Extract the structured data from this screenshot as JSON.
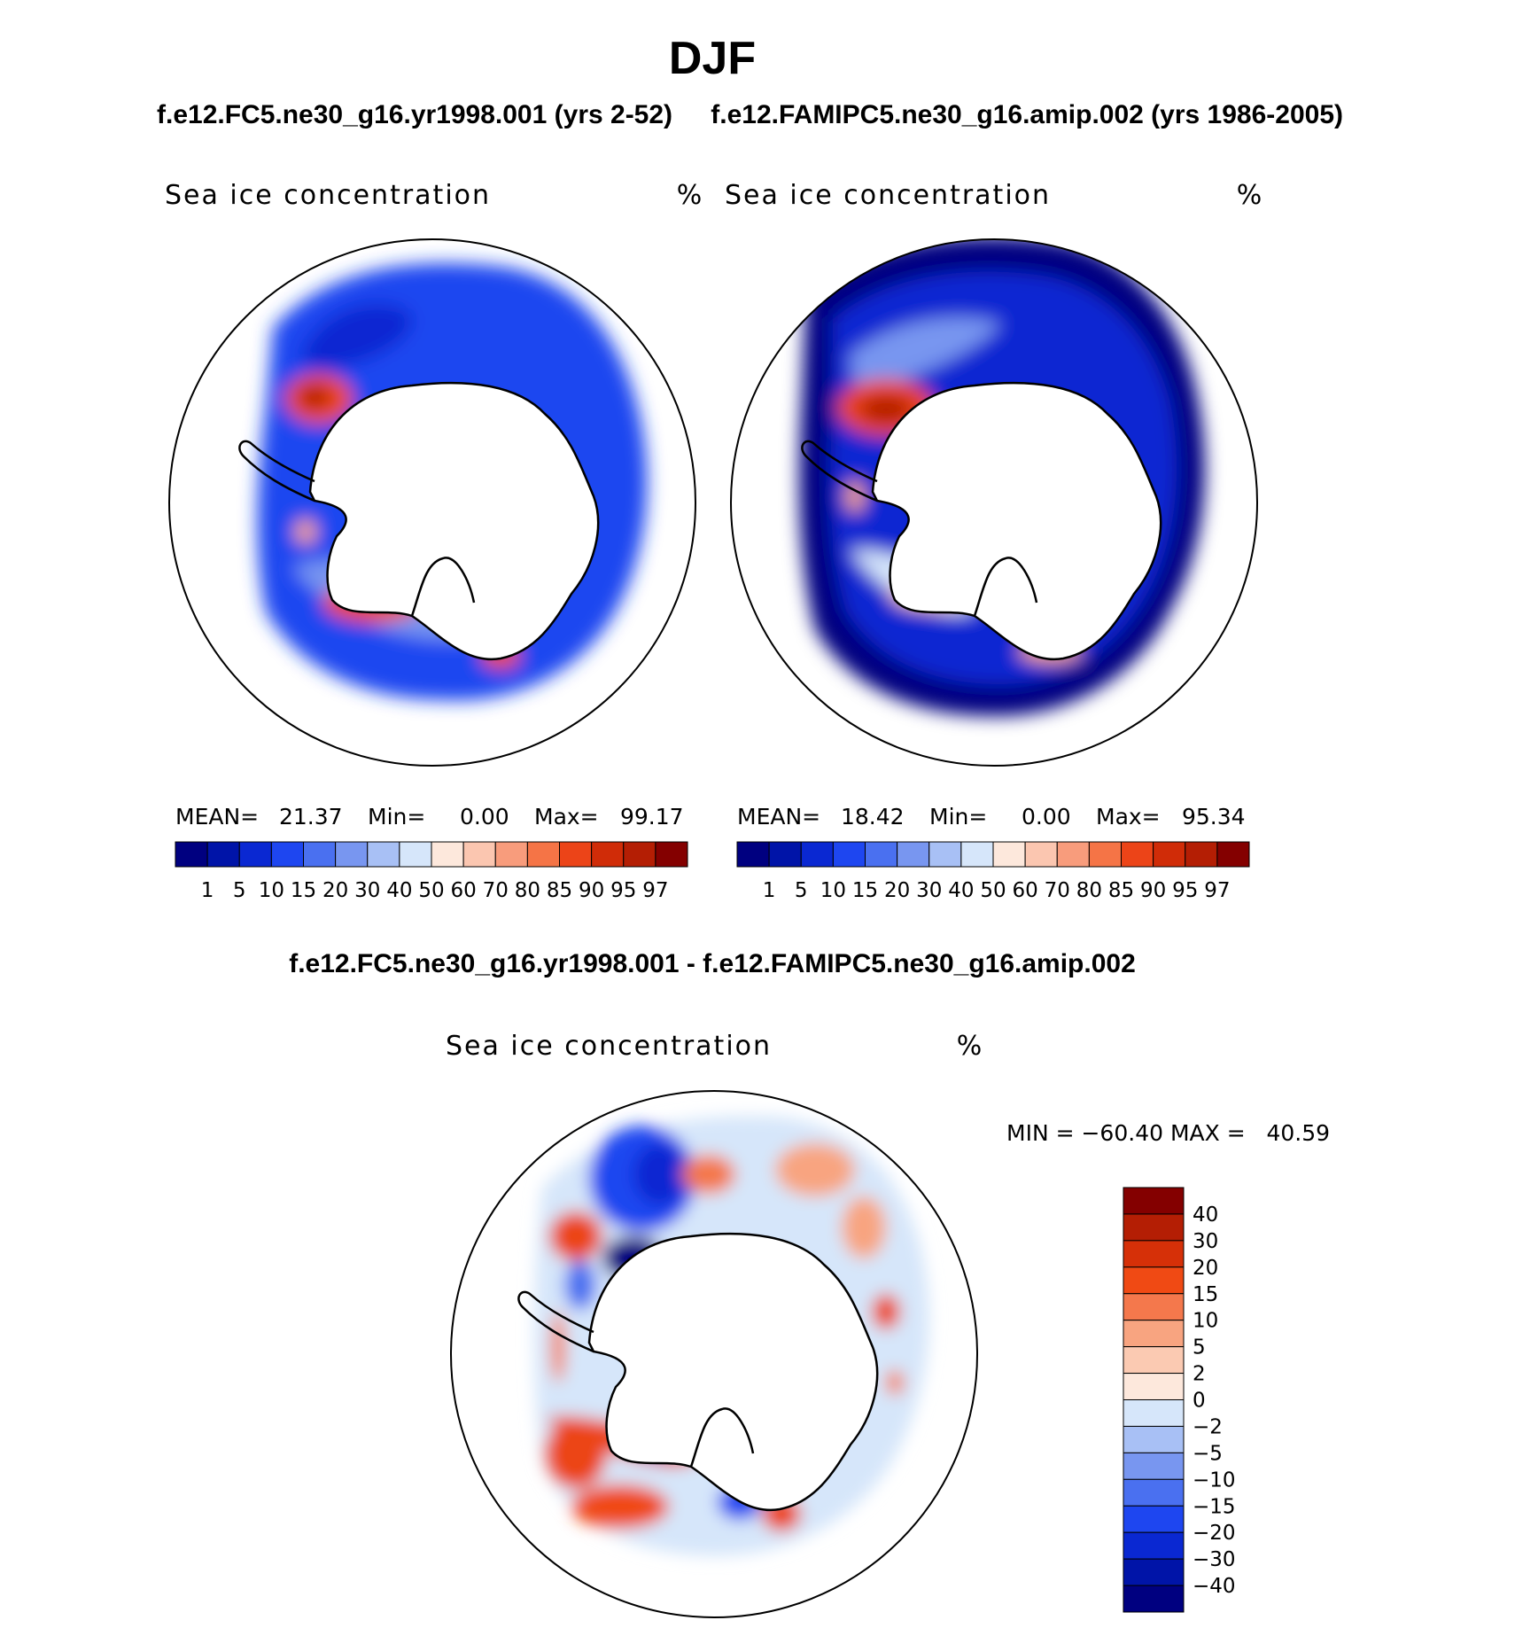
{
  "figure": {
    "title": "DJF",
    "left_case_title": "f.e12.FC5.ne30_g16.yr1998.001 (yrs 2-52)",
    "right_case_title": "f.e12.FAMIPC5.ne30_g16.amip.002 (yrs 1986-2005)",
    "diff_title": "f.e12.FC5.ne30_g16.yr1998.001 - f.e12.FAMIPC5.ne30_g16.amip.002"
  },
  "panels": [
    {
      "id": "left",
      "variable": "Sea ice concentration",
      "units": "%",
      "stats": {
        "mean_label": "MEAN=",
        "mean": "21.37",
        "min_label": "Min=",
        "min": "0.00",
        "max_label": "Max=",
        "max": "99.17"
      }
    },
    {
      "id": "right",
      "variable": "Sea ice concentration",
      "units": "%",
      "stats": {
        "mean_label": "MEAN=",
        "mean": "18.42",
        "min_label": "Min=",
        "min": "0.00",
        "max_label": "Max=",
        "max": "95.34"
      }
    },
    {
      "id": "diff",
      "variable": "Sea ice concentration",
      "units": "%",
      "minmax": "MIN = −60.40 MAX =   40.59"
    }
  ],
  "colorbar_abs": {
    "levels": [
      "1",
      "5",
      "10",
      "15",
      "20",
      "30",
      "40",
      "50",
      "60",
      "70",
      "80",
      "85",
      "90",
      "95",
      "97"
    ],
    "colors": [
      "#000080",
      "#0014a8",
      "#0a28d2",
      "#1e46f0",
      "#4a70f0",
      "#7896f0",
      "#a8c0f5",
      "#d6e6fa",
      "#fde8dc",
      "#fbc6b0",
      "#f89c7c",
      "#f57446",
      "#ec4418",
      "#d02c08",
      "#b41e04",
      "#840000"
    ]
  },
  "colorbar_diff": {
    "levels": [
      "40",
      "30",
      "20",
      "15",
      "10",
      "5",
      "2",
      "0",
      "−2",
      "−5",
      "−10",
      "−15",
      "−20",
      "−30",
      "−40"
    ],
    "colors": [
      "#840000",
      "#b41e04",
      "#d63008",
      "#f04a14",
      "#f4784c",
      "#f8a480",
      "#fbcab2",
      "#fde8dc",
      "#d6e6fa",
      "#a8c0f5",
      "#7896f0",
      "#4a70f0",
      "#1e46f0",
      "#0a28d2",
      "#0014a8",
      "#000080"
    ]
  },
  "chart_data": [
    {
      "type": "heatmap",
      "name": "left",
      "projection": "south polar stereographic",
      "units": "%",
      "mean": 21.37,
      "min": 0.0,
      "max": 99.17,
      "contour_levels": [
        1,
        5,
        10,
        15,
        20,
        30,
        40,
        50,
        60,
        70,
        80,
        85,
        90,
        95,
        97
      ]
    },
    {
      "type": "heatmap",
      "name": "right",
      "projection": "south polar stereographic",
      "units": "%",
      "mean": 18.42,
      "min": 0.0,
      "max": 95.34,
      "contour_levels": [
        1,
        5,
        10,
        15,
        20,
        30,
        40,
        50,
        60,
        70,
        80,
        85,
        90,
        95,
        97
      ]
    },
    {
      "type": "heatmap",
      "name": "difference",
      "projection": "south polar stereographic",
      "units": "%",
      "min": -60.4,
      "max": 40.59,
      "contour_levels": [
        -40,
        -30,
        -20,
        -15,
        -10,
        -5,
        -2,
        0,
        2,
        5,
        10,
        15,
        20,
        30,
        40
      ]
    }
  ]
}
